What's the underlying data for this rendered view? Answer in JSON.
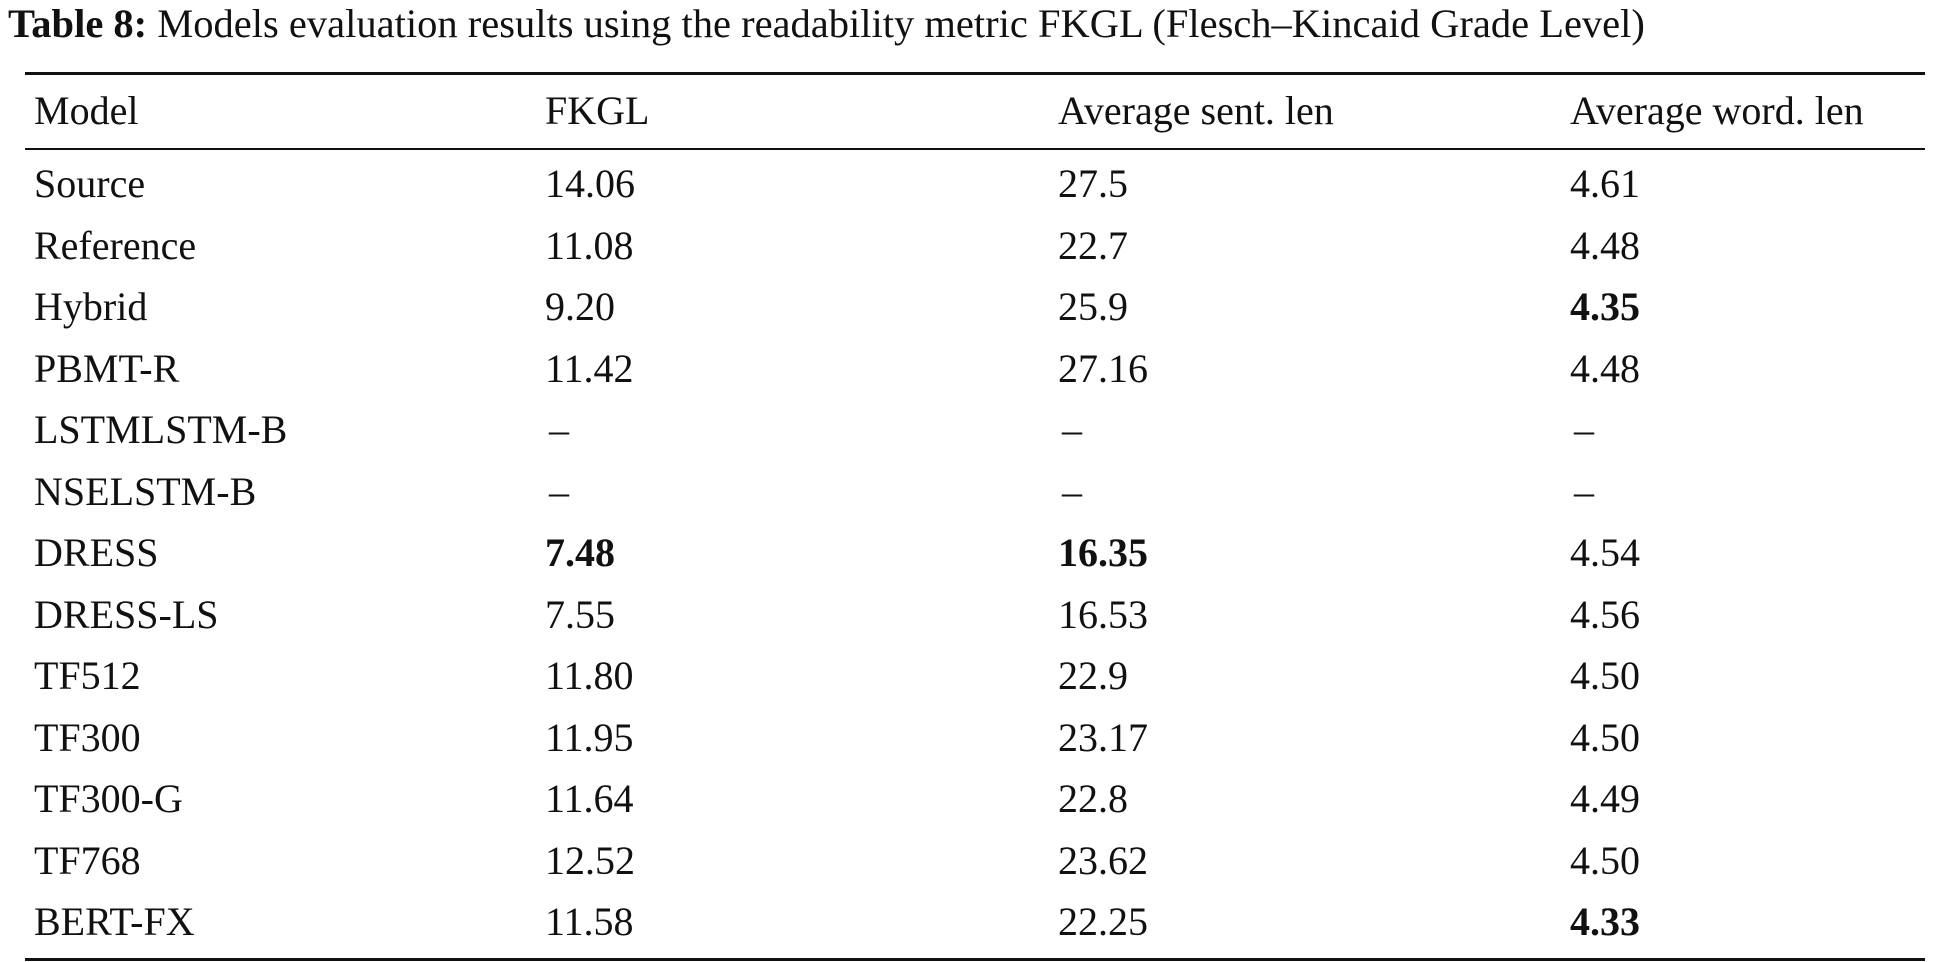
{
  "caption": {
    "label": "Table 8:",
    "text": " Models evaluation results using the readability metric FKGL (Flesch–Kincaid Grade Level)"
  },
  "table": {
    "headers": [
      "Model",
      "FKGL",
      "Average sent. len",
      "Average word. len"
    ],
    "rows": [
      {
        "model": "Source",
        "fkgl": "14.06",
        "sent_len": "27.5",
        "word_len": "4.61",
        "bold": []
      },
      {
        "model": "Reference",
        "fkgl": "11.08",
        "sent_len": "22.7",
        "word_len": "4.48",
        "bold": []
      },
      {
        "model": "Hybrid",
        "fkgl": "9.20",
        "sent_len": "25.9",
        "word_len": "4.35",
        "bold": [
          "word_len"
        ]
      },
      {
        "model": "PBMT-R",
        "fkgl": "11.42",
        "sent_len": "27.16",
        "word_len": "4.48",
        "bold": []
      },
      {
        "model": "LSTMLSTM-B",
        "fkgl": "–",
        "sent_len": "–",
        "word_len": "–",
        "bold": []
      },
      {
        "model": "NSELSTM-B",
        "fkgl": "–",
        "sent_len": "–",
        "word_len": "–",
        "bold": []
      },
      {
        "model": "DRESS",
        "fkgl": "7.48",
        "sent_len": "16.35",
        "word_len": "4.54",
        "bold": [
          "fkgl",
          "sent_len"
        ]
      },
      {
        "model": "DRESS-LS",
        "fkgl": "7.55",
        "sent_len": "16.53",
        "word_len": "4.56",
        "bold": []
      },
      {
        "model": "TF512",
        "fkgl": "11.80",
        "sent_len": "22.9",
        "word_len": "4.50",
        "bold": []
      },
      {
        "model": "TF300",
        "fkgl": "11.95",
        "sent_len": "23.17",
        "word_len": "4.50",
        "bold": []
      },
      {
        "model": "TF300-G",
        "fkgl": "11.64",
        "sent_len": "22.8",
        "word_len": "4.49",
        "bold": []
      },
      {
        "model": "TF768",
        "fkgl": "12.52",
        "sent_len": "23.62",
        "word_len": "4.50",
        "bold": []
      },
      {
        "model": "BERT-FX",
        "fkgl": "11.58",
        "sent_len": "22.25",
        "word_len": "4.33",
        "bold": [
          "word_len"
        ]
      }
    ]
  }
}
